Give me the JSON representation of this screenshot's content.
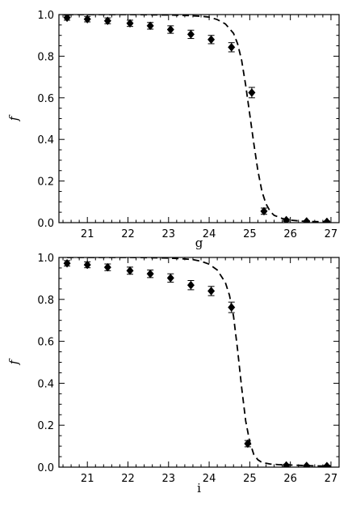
{
  "chart_data": [
    {
      "type": "scatter",
      "title": "",
      "xlabel": "g",
      "ylabel": "f",
      "xlim": [
        20.3,
        27.2
      ],
      "ylim": [
        0.0,
        1.0
      ],
      "xticks": [
        "21",
        "22",
        "23",
        "24",
        "25",
        "26",
        "27"
      ],
      "yticks": [
        "0.0",
        "0.2",
        "0.4",
        "0.6",
        "0.8",
        "1.0"
      ],
      "grid": false,
      "series": [
        {
          "kind": "points-with-errorbars",
          "marker": "diamond",
          "color": "#000000",
          "x": [
            20.5,
            21.0,
            21.5,
            22.05,
            22.55,
            23.05,
            23.55,
            24.05,
            24.55,
            25.05,
            25.35,
            25.9,
            26.4,
            26.9
          ],
          "y": [
            0.985,
            0.978,
            0.97,
            0.958,
            0.946,
            0.928,
            0.905,
            0.88,
            0.843,
            0.625,
            0.055,
            0.012,
            0.006,
            0.004
          ],
          "err": [
            0.012,
            0.013,
            0.014,
            0.015,
            0.016,
            0.018,
            0.02,
            0.02,
            0.022,
            0.025,
            0.015,
            0.006,
            0.004,
            0.004
          ]
        },
        {
          "kind": "line",
          "style": "dashed",
          "color": "#000000",
          "x": [
            20.5,
            21.0,
            21.5,
            22.0,
            22.5,
            23.0,
            23.5,
            23.8,
            24.0,
            24.2,
            24.4,
            24.6,
            24.7,
            24.8,
            24.9,
            25.0,
            25.1,
            25.2,
            25.3,
            25.4,
            25.5,
            25.6,
            25.8,
            26.0,
            26.3,
            26.6,
            26.9,
            27.0
          ],
          "y": [
            1.0,
            1.0,
            1.0,
            1.0,
            0.999,
            0.998,
            0.995,
            0.992,
            0.988,
            0.976,
            0.955,
            0.91,
            0.86,
            0.78,
            0.66,
            0.52,
            0.38,
            0.25,
            0.15,
            0.09,
            0.055,
            0.035,
            0.02,
            0.012,
            0.007,
            0.005,
            0.004,
            0.004
          ]
        }
      ]
    },
    {
      "type": "scatter",
      "title": "",
      "xlabel": "i",
      "ylabel": "f",
      "xlim": [
        20.3,
        27.2
      ],
      "ylim": [
        0.0,
        1.0
      ],
      "xticks": [
        "21",
        "22",
        "23",
        "24",
        "25",
        "26",
        "27"
      ],
      "yticks": [
        "0.0",
        "0.2",
        "0.4",
        "0.6",
        "0.8",
        "1.0"
      ],
      "grid": false,
      "series": [
        {
          "kind": "points-with-errorbars",
          "marker": "diamond",
          "color": "#000000",
          "x": [
            20.5,
            21.0,
            21.5,
            22.05,
            22.55,
            23.05,
            23.55,
            24.05,
            24.55,
            24.95,
            25.9,
            26.4,
            26.9
          ],
          "y": [
            0.972,
            0.965,
            0.953,
            0.937,
            0.922,
            0.902,
            0.868,
            0.84,
            0.762,
            0.112,
            0.008,
            0.006,
            0.005
          ],
          "err": [
            0.013,
            0.014,
            0.016,
            0.017,
            0.018,
            0.02,
            0.022,
            0.022,
            0.025,
            0.015,
            0.006,
            0.004,
            0.004
          ]
        },
        {
          "kind": "line",
          "style": "dashed",
          "color": "#000000",
          "x": [
            20.5,
            21.0,
            21.5,
            22.0,
            22.5,
            23.0,
            23.3,
            23.6,
            23.8,
            24.0,
            24.2,
            24.4,
            24.5,
            24.6,
            24.7,
            24.8,
            24.9,
            25.0,
            25.1,
            25.2,
            25.3,
            25.5,
            25.7,
            26.0,
            26.3,
            26.6,
            26.9,
            27.0
          ],
          "y": [
            1.0,
            1.0,
            1.0,
            1.0,
            0.999,
            0.997,
            0.994,
            0.99,
            0.982,
            0.968,
            0.94,
            0.88,
            0.82,
            0.72,
            0.56,
            0.38,
            0.22,
            0.12,
            0.06,
            0.035,
            0.022,
            0.015,
            0.012,
            0.01,
            0.008,
            0.006,
            0.005,
            0.005
          ]
        }
      ]
    }
  ]
}
